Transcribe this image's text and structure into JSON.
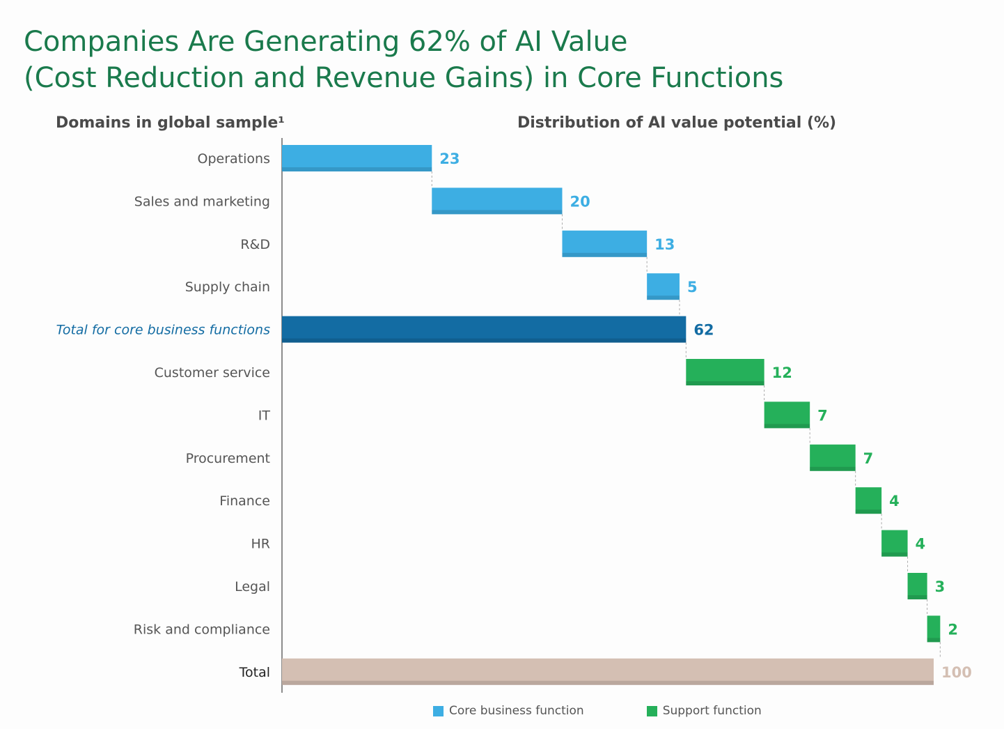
{
  "title_line1": "Companies Are Generating 62% of AI Value",
  "title_line2": "(Cost Reduction and Revenue Gains) in Core Functions",
  "left_header": "Domains in global sample¹",
  "right_header": "Distribution of AI value potential (%)",
  "colors": {
    "core": "#3daee3",
    "core_total": "#136ca3",
    "support": "#25b05a",
    "total": "#d4bfb3",
    "title": "#1a7a4c",
    "label": "#555555"
  },
  "chart_data": {
    "type": "bar",
    "subtype": "waterfall",
    "orientation": "horizontal",
    "xlim": [
      0,
      100
    ],
    "categories": [
      "Operations",
      "Sales and marketing",
      "R&D",
      "Supply chain",
      "Total for core business functions",
      "Customer service",
      "IT",
      "Procurement",
      "Finance",
      "HR",
      "Legal",
      "Risk and compliance",
      "Total"
    ],
    "values": [
      23,
      20,
      13,
      5,
      62,
      12,
      7,
      7,
      4,
      4,
      3,
      2,
      100
    ],
    "starts": [
      0,
      23,
      43,
      56,
      0,
      62,
      74,
      81,
      88,
      92,
      96,
      99,
      0
    ],
    "kinds": [
      "core",
      "core",
      "core",
      "core",
      "core_total",
      "support",
      "support",
      "support",
      "support",
      "support",
      "support",
      "support",
      "total"
    ],
    "value_labels": [
      "23",
      "20",
      "13",
      "5",
      "62",
      "12",
      "7",
      "7",
      "4",
      "4",
      "3",
      "2",
      "100"
    ]
  },
  "legend": [
    {
      "label": "Core business function",
      "kind": "core"
    },
    {
      "label": "Support function",
      "kind": "support"
    }
  ]
}
